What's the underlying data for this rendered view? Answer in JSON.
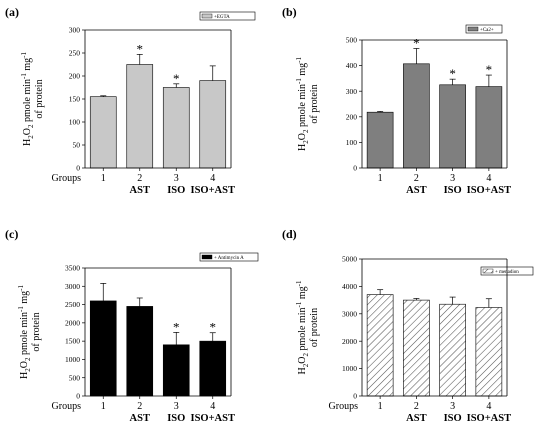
{
  "chart_data": [
    {
      "type": "bar",
      "panel": "(a)",
      "legend": "+EGTA",
      "bar_color": "#c8c8c8",
      "pattern": "solid",
      "group_label": "Groups",
      "categories": [
        "1",
        "2",
        "3",
        "4"
      ],
      "sublabels": [
        "",
        "AST",
        "ISO",
        "ISO+AST"
      ],
      "values": [
        155,
        225,
        175,
        190
      ],
      "errors": [
        2,
        22,
        8,
        32
      ],
      "significance": [
        "",
        "*",
        "*",
        ""
      ],
      "ylabel": {
        "h": "H",
        "sub2": "2",
        "o": "O",
        "sub22": "2",
        "mid": " pmole min",
        "sup1": "-1",
        "mg": " mg",
        "sup2": "-1",
        "line2": "of protein"
      },
      "ylim": [
        0,
        300
      ],
      "yticks": [
        "0",
        "50",
        "100",
        "150",
        "200",
        "250",
        "300"
      ]
    },
    {
      "type": "bar",
      "panel": "(b)",
      "legend": "+Ca2+",
      "bar_color": "#7f7f7f",
      "pattern": "solid",
      "group_label": "",
      "categories": [
        "1",
        "2",
        "3",
        "4"
      ],
      "sublabels": [
        "",
        "AST",
        "ISO",
        "ISO+AST"
      ],
      "values": [
        218,
        407,
        325,
        318
      ],
      "errors": [
        3,
        60,
        22,
        45
      ],
      "significance": [
        "",
        "*",
        "*",
        "*"
      ],
      "ylabel": {
        "h": "H",
        "sub2": "2",
        "o": "O",
        "sub22": "2",
        "mid": " pmole min",
        "sup1": "-1",
        "mg": " mg",
        "sup2": "-1",
        "line2": "of protein"
      },
      "ylim": [
        0,
        500
      ],
      "yticks": [
        "0",
        "100",
        "200",
        "300",
        "400",
        "500"
      ]
    },
    {
      "type": "bar",
      "panel": "(c)",
      "legend": "+ Antimycin A",
      "bar_color": "#000000",
      "pattern": "solid",
      "group_label": "Groups",
      "categories": [
        "1",
        "2",
        "3",
        "4"
      ],
      "sublabels": [
        "",
        "AST",
        "ISO",
        "ISO+AST"
      ],
      "values": [
        2600,
        2450,
        1400,
        1500
      ],
      "errors": [
        480,
        230,
        340,
        230
      ],
      "significance": [
        "",
        "",
        "*",
        "*"
      ],
      "ylabel": {
        "h": "H",
        "sub2": "2",
        "o": "O",
        "sub22": "2",
        "mid": " pmole min",
        "sup1": "-1",
        "mg": " mg",
        "sup2": "-1",
        "line2": "of protein"
      },
      "ylim": [
        0,
        3500
      ],
      "yticks": [
        "0",
        "500",
        "1000",
        "1500",
        "2000",
        "2500",
        "3000",
        "3500"
      ]
    },
    {
      "type": "bar",
      "panel": "(d)",
      "legend": "+ menadion",
      "bar_color": "#ffffff",
      "pattern": "hatch",
      "group_label": "Groups",
      "categories": [
        "1",
        "2",
        "3",
        "4"
      ],
      "sublabels": [
        "",
        "AST",
        "ISO",
        "ISO+AST"
      ],
      "values": [
        3700,
        3500,
        3350,
        3230
      ],
      "errors": [
        180,
        60,
        260,
        320
      ],
      "significance": [
        "",
        "",
        "",
        ""
      ],
      "ylabel": {
        "h": "H",
        "sub2": "2",
        "o": "O",
        "sub22": "2",
        "mid": " pmole min",
        "sup1": "-1",
        "mg": " mg",
        "sup2": "-1",
        "line2": "of protein"
      },
      "ylim": [
        0,
        5000
      ],
      "yticks": [
        "0",
        "1000",
        "2000",
        "3000",
        "4000",
        "5000"
      ]
    }
  ]
}
